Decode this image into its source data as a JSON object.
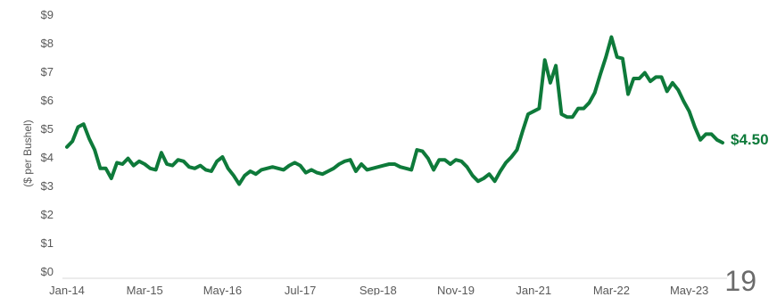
{
  "chart_data": {
    "type": "line",
    "title": "",
    "xlabel": "",
    "ylabel": "($ per Bushel)",
    "ylim": [
      0,
      9
    ],
    "yticks": [
      "$0",
      "$1",
      "$2",
      "$3",
      "$4",
      "$5",
      "$6",
      "$7",
      "$8",
      "$9"
    ],
    "xticks": [
      "Jan-14",
      "Mar-15",
      "May-16",
      "Jul-17",
      "Sep-18",
      "Nov-19",
      "Jan-21",
      "Mar-22",
      "May-23"
    ],
    "grid": false,
    "series": [
      {
        "color": "#0e7a3a",
        "x_start": "Jan-14",
        "frequency": "monthly",
        "values": [
          4.35,
          4.55,
          5.05,
          5.15,
          4.65,
          4.25,
          3.6,
          3.6,
          3.25,
          3.8,
          3.75,
          3.95,
          3.7,
          3.85,
          3.75,
          3.6,
          3.55,
          4.15,
          3.75,
          3.7,
          3.9,
          3.85,
          3.65,
          3.6,
          3.7,
          3.55,
          3.5,
          3.85,
          4.0,
          3.6,
          3.35,
          3.05,
          3.35,
          3.5,
          3.4,
          3.55,
          3.6,
          3.65,
          3.6,
          3.55,
          3.7,
          3.8,
          3.7,
          3.45,
          3.55,
          3.45,
          3.4,
          3.5,
          3.6,
          3.75,
          3.85,
          3.9,
          3.5,
          3.75,
          3.55,
          3.6,
          3.65,
          3.7,
          3.75,
          3.75,
          3.65,
          3.6,
          3.55,
          4.25,
          4.2,
          3.95,
          3.55,
          3.9,
          3.9,
          3.75,
          3.9,
          3.85,
          3.65,
          3.35,
          3.15,
          3.25,
          3.4,
          3.15,
          3.5,
          3.8,
          4.0,
          4.25,
          4.9,
          5.5,
          5.6,
          5.7,
          7.4,
          6.6,
          7.2,
          5.5,
          5.4,
          5.4,
          5.7,
          5.7,
          5.9,
          6.25,
          6.9,
          7.5,
          8.2,
          7.5,
          7.45,
          6.2,
          6.75,
          6.75,
          6.95,
          6.65,
          6.8,
          6.8,
          6.3,
          6.6,
          6.35,
          5.95,
          5.6,
          5.05,
          4.6,
          4.8,
          4.8,
          4.6,
          4.5
        ]
      }
    ],
    "end_label": "$4.50"
  },
  "slide_number": "19"
}
